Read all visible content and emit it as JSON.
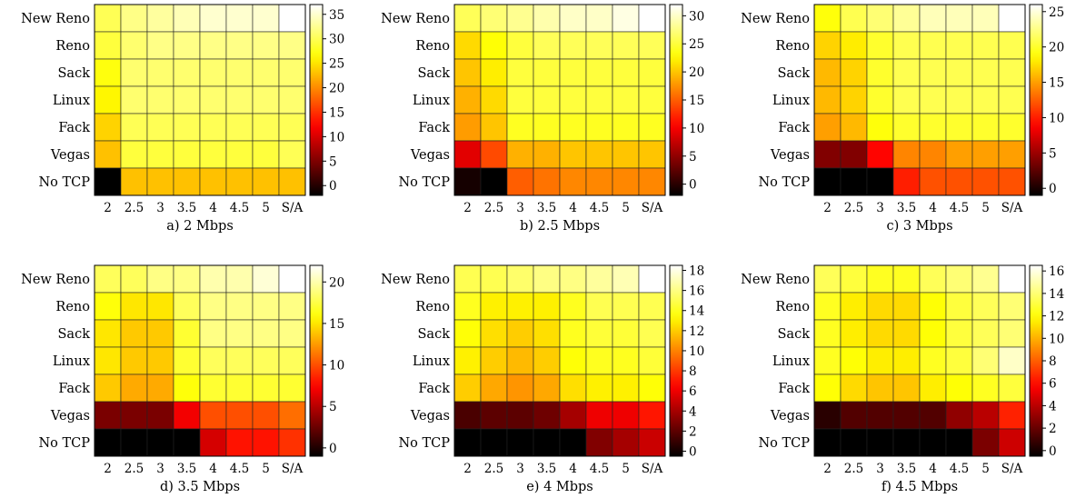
{
  "figure": {
    "title": "",
    "colormap": "hot"
  },
  "chart_data": [
    {
      "type": "heatmap",
      "caption": "a) 2 Mbps",
      "rows": [
        "New Reno",
        "Reno",
        "Sack",
        "Linux",
        "Fack",
        "Vegas",
        "No TCP"
      ],
      "columns": [
        "2",
        "2.5",
        "3",
        "3.5",
        "4",
        "4.5",
        "5",
        "S/A"
      ],
      "colorbar_ticks": [
        0,
        5,
        10,
        15,
        20,
        25,
        30,
        35
      ],
      "colorbar_range": [
        -2,
        37
      ],
      "values": [
        [
          30,
          32,
          33,
          34,
          35,
          35,
          35,
          37
        ],
        [
          29,
          31,
          32,
          32,
          32,
          32,
          32,
          32
        ],
        [
          27,
          31,
          31,
          31,
          31,
          31,
          31,
          31
        ],
        [
          26,
          31,
          31,
          31,
          31,
          31,
          31,
          31
        ],
        [
          24,
          30,
          30,
          30,
          30,
          30,
          30,
          30
        ],
        [
          23,
          29,
          29,
          29,
          29,
          29,
          29,
          30
        ],
        [
          -2,
          23,
          23,
          23,
          23,
          23,
          23,
          23
        ]
      ]
    },
    {
      "type": "heatmap",
      "caption": "b) 2.5 Mbps",
      "rows": [
        "New Reno",
        "Reno",
        "Sack",
        "Linux",
        "Fack",
        "Vegas",
        "No TCP"
      ],
      "columns": [
        "2",
        "2.5",
        "3",
        "3.5",
        "4",
        "4.5",
        "5",
        "S/A"
      ],
      "colorbar_ticks": [
        0,
        5,
        10,
        15,
        20,
        25,
        30
      ],
      "colorbar_range": [
        -2,
        32
      ],
      "values": [
        [
          26,
          27,
          28,
          29,
          30,
          30,
          31,
          32
        ],
        [
          21,
          23,
          25,
          26,
          26,
          26,
          26,
          26
        ],
        [
          20,
          22,
          25,
          25,
          25,
          25,
          25,
          25
        ],
        [
          19,
          21,
          25,
          25,
          25,
          25,
          25,
          25
        ],
        [
          18,
          20,
          24,
          24,
          24,
          24,
          24,
          24
        ],
        [
          9,
          14,
          19,
          19,
          20,
          20,
          20,
          20
        ],
        [
          -1,
          -2,
          15,
          16,
          17,
          17,
          17,
          17
        ]
      ]
    },
    {
      "type": "heatmap",
      "caption": "c) 3 Mbps",
      "rows": [
        "New Reno",
        "Reno",
        "Sack",
        "Linux",
        "Fack",
        "Vegas",
        "No TCP"
      ],
      "columns": [
        "2",
        "2.5",
        "3",
        "3.5",
        "4",
        "4.5",
        "5",
        "S/A"
      ],
      "colorbar_ticks": [
        0,
        5,
        10,
        15,
        20,
        25
      ],
      "colorbar_range": [
        -1,
        26
      ],
      "values": [
        [
          19,
          21,
          22,
          23,
          24,
          24,
          24,
          26
        ],
        [
          17,
          18,
          20,
          21,
          21,
          21,
          21,
          21
        ],
        [
          16,
          17,
          20,
          21,
          21,
          21,
          21,
          21
        ],
        [
          16,
          17,
          20,
          21,
          21,
          21,
          21,
          21
        ],
        [
          15,
          16,
          19,
          20,
          20,
          20,
          20,
          20
        ],
        [
          4,
          4,
          9,
          14,
          14,
          15,
          15,
          15
        ],
        [
          -1,
          -1,
          -1,
          10,
          12,
          12,
          12,
          12
        ]
      ]
    },
    {
      "type": "heatmap",
      "caption": "d) 3.5 Mbps",
      "rows": [
        "New Reno",
        "Reno",
        "Sack",
        "Linux",
        "Fack",
        "Vegas",
        "No TCP"
      ],
      "columns": [
        "2",
        "2.5",
        "3",
        "3.5",
        "4",
        "4.5",
        "5",
        "S/A"
      ],
      "colorbar_ticks": [
        0,
        5,
        10,
        15,
        20
      ],
      "colorbar_range": [
        -1,
        22
      ],
      "values": [
        [
          18,
          18,
          19,
          19,
          20,
          20,
          21,
          22
        ],
        [
          16,
          15,
          15,
          18,
          19,
          19,
          19,
          19
        ],
        [
          15,
          14,
          14,
          17,
          19,
          19,
          19,
          19
        ],
        [
          15,
          14,
          14,
          17,
          18,
          18,
          18,
          18
        ],
        [
          14,
          13,
          13,
          16,
          17,
          17,
          17,
          17
        ],
        [
          3,
          3,
          3,
          7,
          10,
          10,
          10,
          11
        ],
        [
          -1,
          -1,
          -1,
          -1,
          6,
          8,
          8,
          9
        ]
      ]
    },
    {
      "type": "heatmap",
      "caption": "e) 4 Mbps",
      "rows": [
        "New Reno",
        "Reno",
        "Sack",
        "Linux",
        "Fack",
        "Vegas",
        "No TCP"
      ],
      "columns": [
        "2",
        "2.5",
        "3",
        "3.5",
        "4",
        "4.5",
        "5",
        "S/A"
      ],
      "colorbar_ticks": [
        0,
        2,
        4,
        6,
        8,
        10,
        12,
        14,
        16,
        18
      ],
      "colorbar_range": [
        -0.5,
        18.5
      ],
      "values": [
        [
          15,
          15,
          15.5,
          16,
          16,
          16.5,
          17,
          18.5
        ],
        [
          14,
          13,
          13,
          13,
          14,
          15,
          15,
          15
        ],
        [
          13.5,
          12.5,
          12,
          12.5,
          14,
          14.5,
          14.5,
          15
        ],
        [
          13,
          12,
          11.5,
          12,
          13.5,
          14,
          14,
          14.5
        ],
        [
          12,
          11,
          10.5,
          11,
          12.5,
          13,
          13,
          13.5
        ],
        [
          1.5,
          2,
          2,
          2.5,
          4,
          6,
          6,
          7
        ],
        [
          -0.5,
          -0.5,
          -0.5,
          -0.5,
          -0.5,
          3,
          4,
          5
        ]
      ]
    },
    {
      "type": "heatmap",
      "caption": "f) 4.5 Mbps",
      "rows": [
        "New Reno",
        "Reno",
        "Sack",
        "Linux",
        "Fack",
        "Vegas",
        "No TCP"
      ],
      "columns": [
        "2",
        "2.5",
        "3",
        "3.5",
        "4",
        "4.5",
        "5",
        "S/A"
      ],
      "colorbar_ticks": [
        0,
        2,
        4,
        6,
        8,
        10,
        12,
        14,
        16
      ],
      "colorbar_range": [
        -0.5,
        16.5
      ],
      "values": [
        [
          13.5,
          13,
          12.5,
          12.5,
          13.5,
          14,
          14.5,
          16.5
        ],
        [
          12.5,
          11.5,
          11,
          11,
          12,
          13,
          13.5,
          14
        ],
        [
          12.5,
          11.5,
          11,
          11,
          12,
          13,
          13.5,
          14
        ],
        [
          12.5,
          12,
          11.5,
          11.5,
          12.5,
          13,
          14,
          15.5
        ],
        [
          12,
          11,
          10.5,
          10.5,
          11.5,
          12,
          12.5,
          13
        ],
        [
          0.5,
          1.5,
          1.5,
          1.5,
          1.5,
          3,
          4,
          6.5
        ],
        [
          -0.5,
          -0.5,
          -0.5,
          -0.5,
          -0.5,
          -0.5,
          2.5,
          4.5
        ]
      ]
    }
  ]
}
